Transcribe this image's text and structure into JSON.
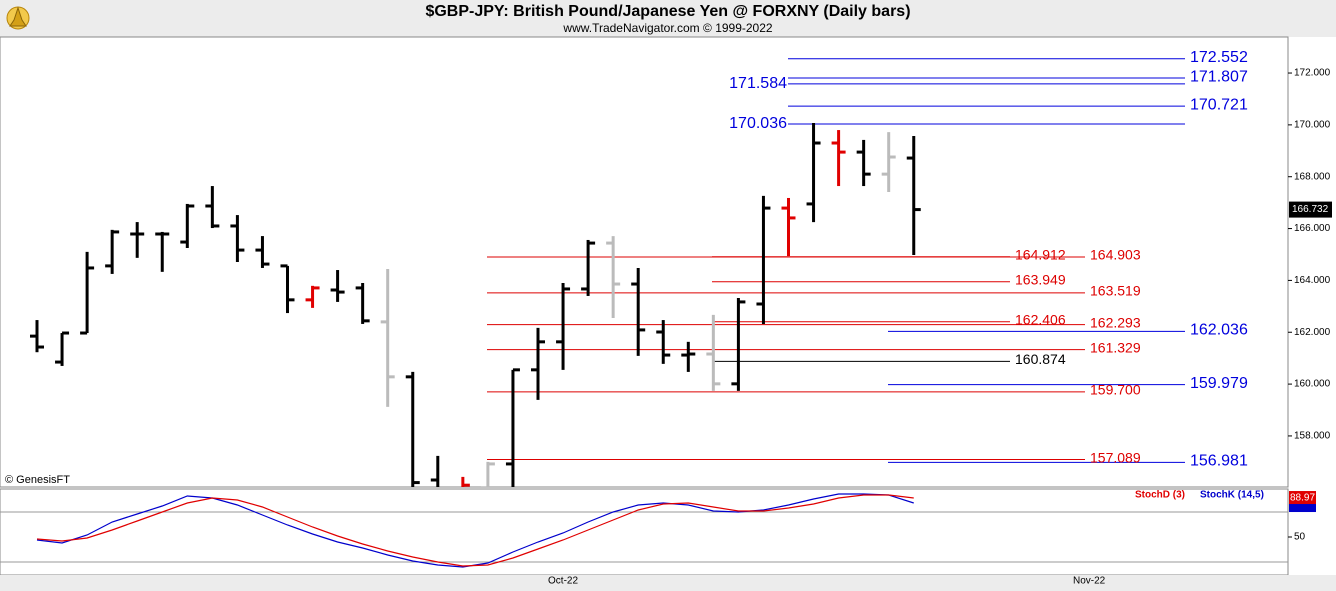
{
  "chart_data": [
    {
      "type": "ohlc",
      "title": "$GBP-JPY:  British Pound/Japanese Yen @ FORXNY  (Daily bars)",
      "subtitle": "www.TradeNavigator.com © 1999-2022",
      "watermark": "© GenesisFT",
      "categories": [
        null,
        null,
        null,
        null,
        null,
        null,
        null,
        null,
        null,
        null,
        null,
        null,
        null,
        null,
        null,
        null,
        null,
        null,
        null,
        null,
        null,
        "Oct-22",
        null,
        null,
        null,
        null,
        null,
        null,
        null,
        null,
        null,
        null,
        null,
        null,
        null,
        null,
        null,
        null,
        null,
        null,
        null,
        null,
        "Nov-22",
        null,
        null,
        null,
        null,
        null,
        null,
        null,
        null
      ],
      "open": [
        161.85,
        160.85,
        161.97,
        164.56,
        165.79,
        165.79,
        165.48,
        166.87,
        166.1,
        165.17,
        164.56,
        163.25,
        163.63,
        163.71,
        162.4,
        160.28,
        156.3,
        155.8,
        156.0,
        156.92,
        160.55,
        161.63,
        163.67,
        165.44,
        163.86,
        162.01,
        161.12,
        161.16,
        160.01,
        163.09,
        166.79,
        166.95,
        169.3,
        168.95,
        168.1,
        168.72,
        null,
        null,
        null,
        null,
        null,
        null,
        null,
        null,
        null,
        null,
        null,
        null,
        null,
        null,
        null
      ],
      "high": [
        162.47,
        161.97,
        165.1,
        165.95,
        166.25,
        165.87,
        166.95,
        167.64,
        166.52,
        165.71,
        164.56,
        163.79,
        164.4,
        163.9,
        164.44,
        160.47,
        157.23,
        156.42,
        157.0,
        160.55,
        162.17,
        163.9,
        165.56,
        165.71,
        164.48,
        162.47,
        161.63,
        162.67,
        163.32,
        167.26,
        167.18,
        170.07,
        169.8,
        169.42,
        169.72,
        169.57,
        null,
        null,
        null,
        null,
        null,
        null,
        null,
        null,
        null,
        null,
        null,
        null,
        null,
        null,
        null
      ],
      "low": [
        161.23,
        160.7,
        161.97,
        164.25,
        164.87,
        164.33,
        165.25,
        166.02,
        164.71,
        164.48,
        162.74,
        162.94,
        163.17,
        162.32,
        159.12,
        155.6,
        155.3,
        155.4,
        155.5,
        155.9,
        159.39,
        160.55,
        163.4,
        162.55,
        161.09,
        160.78,
        160.47,
        159.74,
        159.74,
        162.32,
        164.94,
        166.25,
        167.64,
        167.64,
        167.41,
        164.98,
        null,
        null,
        null,
        null,
        null,
        null,
        null,
        null,
        null,
        null,
        null,
        null,
        null,
        null,
        null
      ],
      "close": [
        161.43,
        161.97,
        164.48,
        165.87,
        165.79,
        165.79,
        166.87,
        166.1,
        165.17,
        164.63,
        163.25,
        163.71,
        163.55,
        162.44,
        160.28,
        156.2,
        155.8,
        156.1,
        156.92,
        160.55,
        161.63,
        163.67,
        165.44,
        163.86,
        162.09,
        161.12,
        161.16,
        160.01,
        163.17,
        166.79,
        166.41,
        169.3,
        168.95,
        168.1,
        168.76,
        166.732,
        null,
        null,
        null,
        null,
        null,
        null,
        null,
        null,
        null,
        null,
        null,
        null,
        null,
        null,
        null
      ],
      "bar_colors": [
        "#000000",
        "#000000",
        "#000000",
        "#000000",
        "#000000",
        "#000000",
        "#000000",
        "#000000",
        "#000000",
        "#000000",
        "#000000",
        "#e00000",
        "#000000",
        "#000000",
        "#bbbbbb",
        "#000000",
        "#000000",
        "#e00000",
        "#bbbbbb",
        "#000000",
        "#000000",
        "#000000",
        "#000000",
        "#bbbbbb",
        "#000000",
        "#000000",
        "#000000",
        "#bbbbbb",
        "#000000",
        "#000000",
        "#e00000",
        "#000000",
        "#e00000",
        "#000000",
        "#bbbbbb",
        "#000000",
        null,
        null,
        null,
        null,
        null,
        null,
        null,
        null,
        null,
        null,
        null,
        null,
        null,
        null,
        null
      ],
      "ylim": [
        156.03,
        173.39
      ],
      "yticks": [
        {
          "value": 158,
          "label": "158.000"
        },
        {
          "value": 160,
          "label": "160.000"
        },
        {
          "value": 162,
          "label": "162.000"
        },
        {
          "value": 164,
          "label": "164.000"
        },
        {
          "value": 166,
          "label": "166.000"
        },
        {
          "value": 168,
          "label": "168.000"
        },
        {
          "value": 170,
          "label": "170.000"
        },
        {
          "value": 172,
          "label": "172.000"
        }
      ],
      "levels": [
        {
          "value": 172.552,
          "color": "#0000dd"
        },
        {
          "value": 171.807,
          "color": "#0000dd"
        },
        {
          "value": 171.584,
          "color": "#0000dd"
        },
        {
          "value": 170.721,
          "color": "#0000dd"
        },
        {
          "value": 170.036,
          "color": "#0000dd"
        },
        {
          "value": 164.912,
          "color": "#dd0000"
        },
        {
          "value": 164.903,
          "color": "#dd0000"
        },
        {
          "value": 163.949,
          "color": "#dd0000"
        },
        {
          "value": 163.519,
          "color": "#dd0000"
        },
        {
          "value": 162.406,
          "color": "#dd0000"
        },
        {
          "value": 162.293,
          "color": "#dd0000"
        },
        {
          "value": 162.036,
          "color": "#0000dd"
        },
        {
          "value": 161.329,
          "color": "#dd0000"
        },
        {
          "value": 160.874,
          "color": "#000000"
        },
        {
          "value": 159.979,
          "color": "#0000dd"
        },
        {
          "value": 159.7,
          "label": "159.700",
          "color": "#dd0000"
        },
        {
          "value": 157.089,
          "color": "#dd0000"
        },
        {
          "value": 156.981,
          "color": "#0000dd"
        }
      ]
    },
    {
      "type": "line",
      "series": [
        {
          "name": "StochD (3)",
          "color": "#e00000",
          "values": [
            48,
            46,
            49,
            57,
            66,
            75,
            84,
            89,
            87,
            80,
            70,
            60,
            51,
            43,
            36,
            30,
            25,
            21,
            22,
            29,
            38,
            47,
            57,
            67,
            77,
            83,
            84,
            80,
            76,
            76,
            79,
            83,
            89,
            92,
            92,
            88.97,
            null,
            null,
            null,
            null,
            null,
            null,
            null,
            null,
            null,
            null,
            null,
            null,
            null,
            null,
            null
          ]
        },
        {
          "name": "StochK (14,5)",
          "color": "#0000cc",
          "values": [
            47,
            44,
            52,
            65,
            73,
            81,
            91,
            89,
            82,
            72,
            62,
            53,
            45,
            39,
            32,
            26,
            22,
            20,
            24,
            35,
            45,
            54,
            65,
            75,
            82,
            84,
            82,
            76,
            75,
            77,
            82,
            88,
            93,
            93,
            92,
            84,
            null,
            null,
            null,
            null,
            null,
            null,
            null,
            null,
            null,
            null,
            null,
            null,
            null,
            null,
            null
          ]
        }
      ],
      "ylim": [
        12,
        98
      ],
      "yticks": [
        50
      ],
      "levels": [
        75,
        25
      ]
    }
  ]
}
